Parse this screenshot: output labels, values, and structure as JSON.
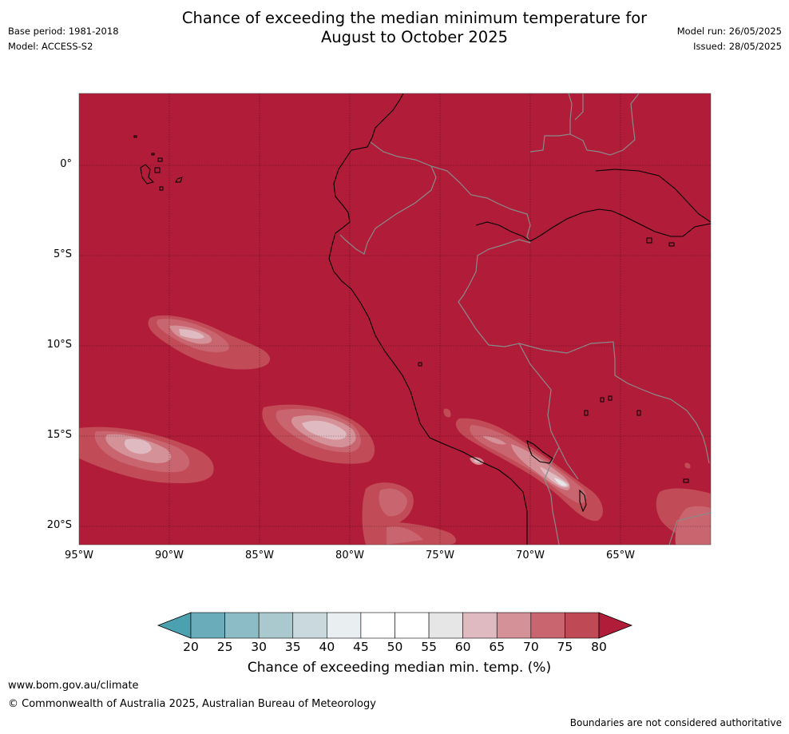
{
  "header": {
    "title_line1": "Chance of exceeding the median minimum temperature for",
    "title_line2": "August to October 2025",
    "base_period": "Base period: 1981-2018",
    "model": "Model: ACCESS-S2",
    "model_run": "Model run: 26/05/2025",
    "issued": "Issued: 28/05/2025"
  },
  "map": {
    "lat_labels": [
      "0°",
      "5°S",
      "10°S",
      "15°S",
      "20°S"
    ],
    "lon_labels": [
      "95°W",
      "90°W",
      "85°W",
      "80°W",
      "75°W",
      "70°W",
      "65°W"
    ],
    "background_category": "80+",
    "background_color": "#b11c39",
    "coastline_color": "#000000",
    "border_color": "#808080"
  },
  "colorbar": {
    "ticks": [
      "20",
      "25",
      "30",
      "35",
      "40",
      "45",
      "50",
      "55",
      "60",
      "65",
      "70",
      "75",
      "80"
    ],
    "colors": [
      "#4ba1b0",
      "#6aacba",
      "#8cbcc6",
      "#a9c9cf",
      "#c9d9dd",
      "#e9eef0",
      "#ffffff",
      "#ffffff",
      "#e6e6e6",
      "#e0bac1",
      "#d49198",
      "#c9656f",
      "#bf4a56",
      "#b11c39"
    ],
    "label": "Chance of exceeding median min. temp. (%)"
  },
  "footer": {
    "url": "www.bom.gov.au/climate",
    "copyright": "© Commonwealth of Australia 2025, Australian Bureau of Meteorology",
    "note": "Boundaries are not considered authoritative"
  }
}
